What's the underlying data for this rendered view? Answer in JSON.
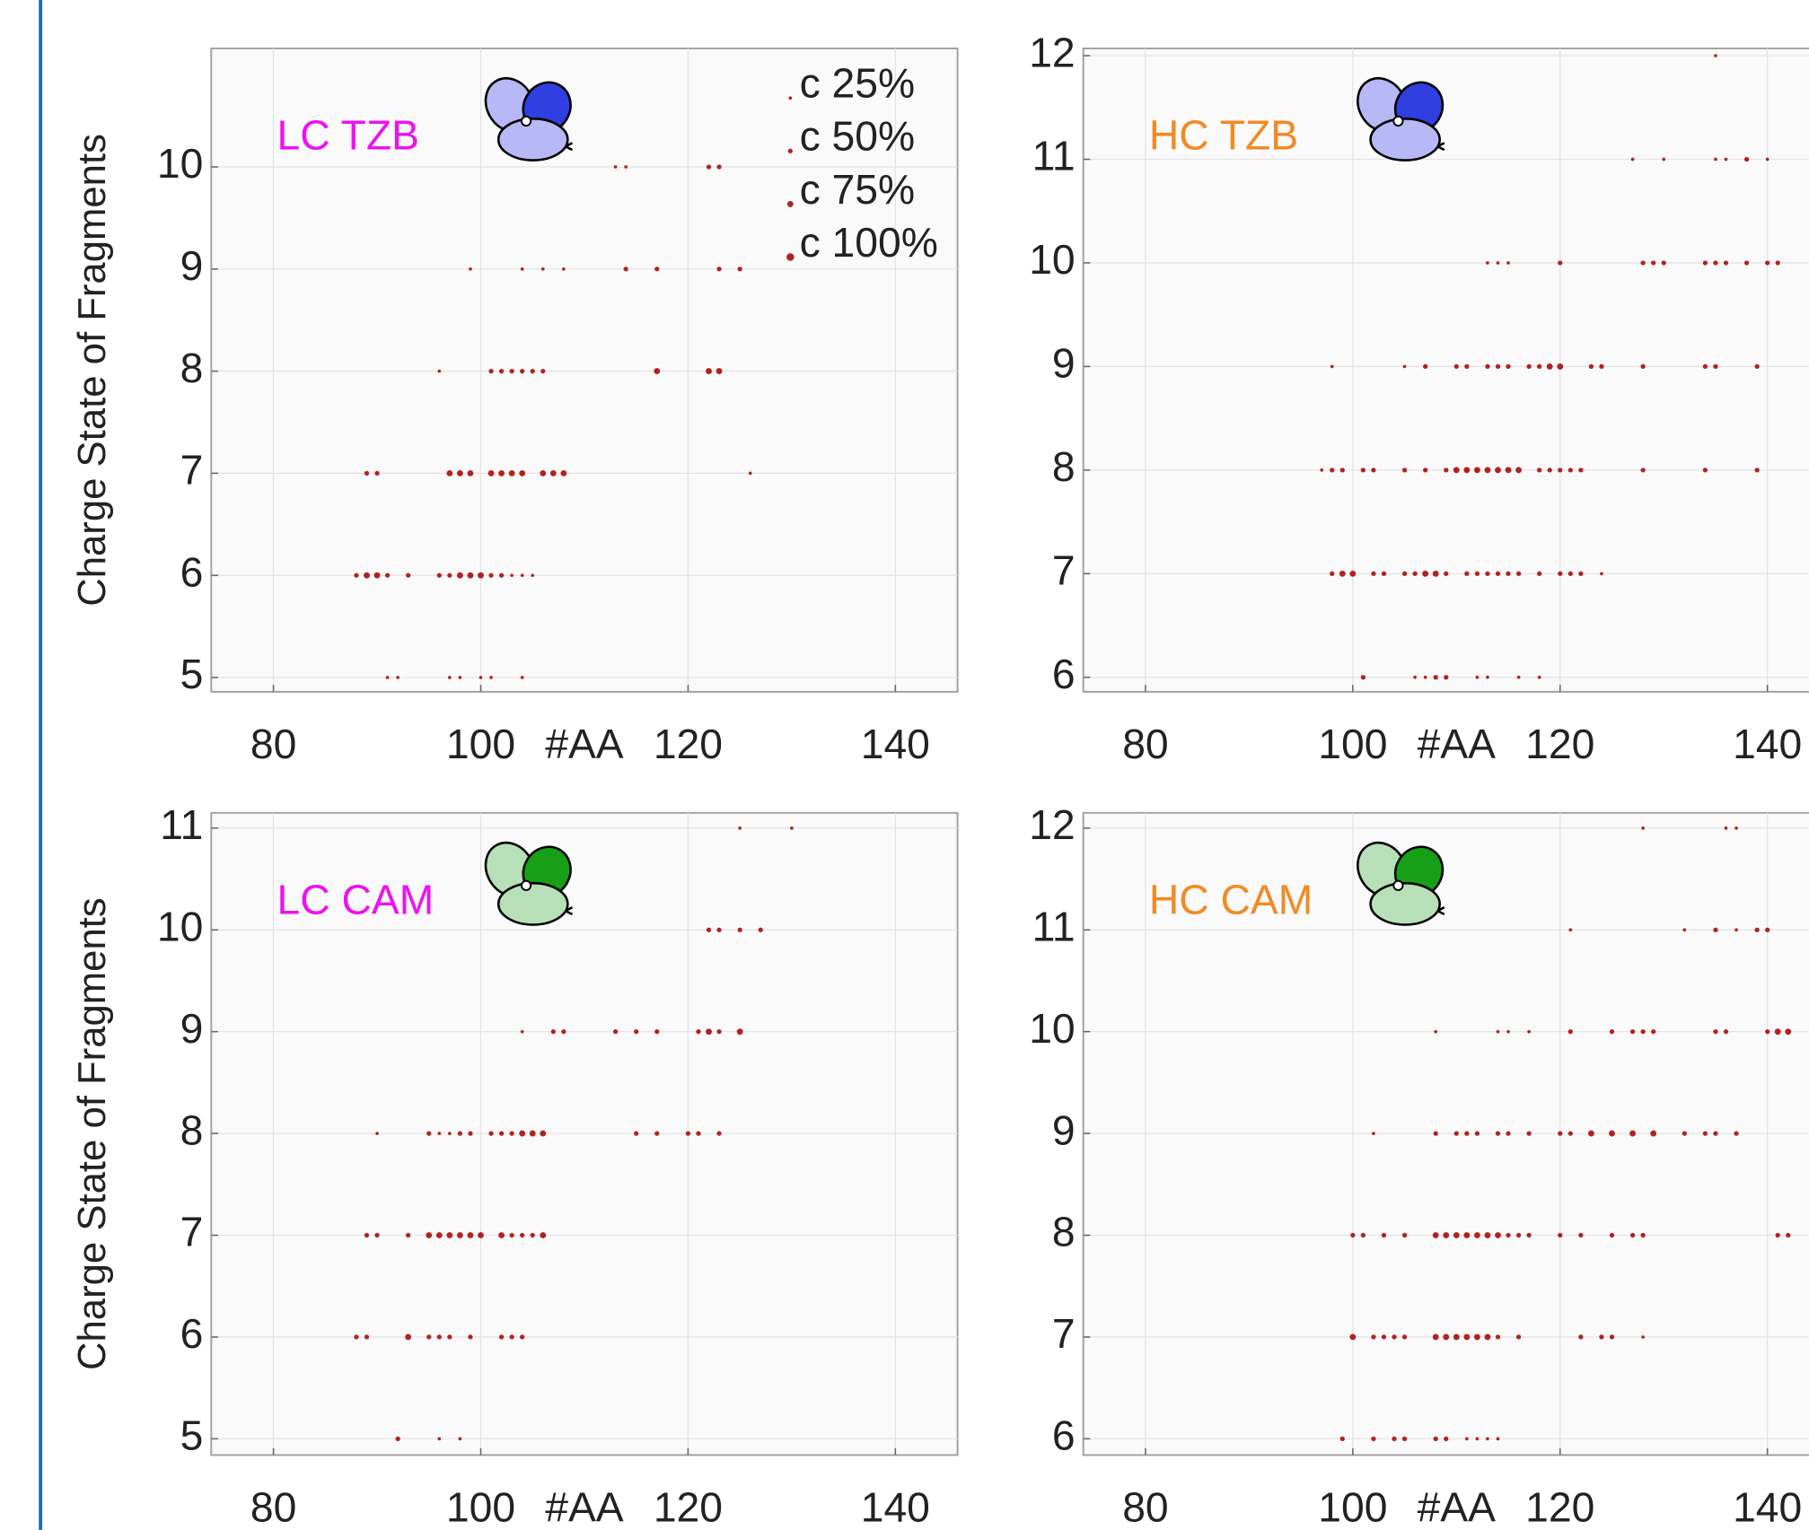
{
  "chart_data": [
    {
      "type": "scatter",
      "title": "LC TZB",
      "title_color": "#ee11ee",
      "icon_colors": [
        "#b8b8f6",
        "#2f3fe0"
      ],
      "color": "#b22222",
      "x_label": "#AA",
      "y_label": "Charge State of Fragments",
      "xlim": [
        74,
        146
      ],
      "ylim": [
        4.86,
        11.16
      ],
      "xticks": [
        80,
        100,
        120,
        140
      ],
      "yticks": [
        5,
        6,
        7,
        8,
        9,
        10
      ],
      "grid": true,
      "legend": [
        {
          "label": "c 25%",
          "value": 25
        },
        {
          "label": "c 50%",
          "value": 50
        },
        {
          "label": "c 75%",
          "value": 75
        },
        {
          "label": "c 100%",
          "value": 100
        }
      ],
      "rows": [
        {
          "charge": 10,
          "x": [
            113,
            114,
            122,
            123
          ],
          "coverage": [
            25,
            25,
            50,
            50
          ]
        },
        {
          "charge": 9,
          "x": [
            99,
            104,
            106,
            108,
            114,
            117,
            123,
            125
          ],
          "coverage": [
            25,
            25,
            25,
            25,
            50,
            50,
            50,
            50
          ]
        },
        {
          "charge": 8,
          "x": [
            96,
            101,
            102,
            103,
            104,
            105,
            106,
            117,
            122,
            123
          ],
          "coverage": [
            25,
            50,
            50,
            50,
            50,
            50,
            50,
            75,
            75,
            75
          ]
        },
        {
          "charge": 7,
          "x": [
            89,
            90,
            97,
            98,
            99,
            101,
            102,
            103,
            104,
            106,
            107,
            108,
            126
          ],
          "coverage": [
            50,
            50,
            75,
            75,
            75,
            75,
            75,
            75,
            75,
            75,
            75,
            75,
            25
          ]
        },
        {
          "charge": 6,
          "x": [
            88,
            89,
            90,
            91,
            93,
            96,
            97,
            98,
            99,
            100,
            101,
            102,
            103,
            104,
            105
          ],
          "coverage": [
            50,
            75,
            75,
            50,
            50,
            50,
            50,
            75,
            75,
            75,
            50,
            50,
            25,
            25,
            25
          ]
        },
        {
          "charge": 5,
          "x": [
            91,
            92,
            97,
            98,
            100,
            101,
            104
          ],
          "coverage": [
            25,
            25,
            25,
            25,
            25,
            25,
            25
          ]
        }
      ]
    },
    {
      "type": "scatter",
      "title": "HC TZB",
      "title_color": "#f28a24",
      "icon_colors": [
        "#b8b8f6",
        "#2f3fe0"
      ],
      "color": "#b22222",
      "x_label": "#AA",
      "xlim": [
        74,
        146
      ],
      "ylim": [
        5.86,
        12.07
      ],
      "xticks": [
        80,
        100,
        120,
        140
      ],
      "yticks": [
        6,
        7,
        8,
        9,
        10,
        11,
        12
      ],
      "grid": true,
      "rows": [
        {
          "charge": 12,
          "x": [
            135
          ],
          "coverage": [
            25
          ]
        },
        {
          "charge": 11,
          "x": [
            127,
            130,
            135,
            136,
            138,
            140
          ],
          "coverage": [
            25,
            25,
            25,
            25,
            50,
            25
          ]
        },
        {
          "charge": 10,
          "x": [
            113,
            114,
            115,
            120,
            128,
            129,
            130,
            134,
            135,
            136,
            138,
            140,
            141
          ],
          "coverage": [
            25,
            25,
            25,
            50,
            50,
            50,
            50,
            50,
            50,
            50,
            50,
            50,
            50
          ]
        },
        {
          "charge": 9,
          "x": [
            98,
            105,
            107,
            110,
            111,
            113,
            114,
            115,
            117,
            118,
            119,
            120,
            123,
            124,
            128,
            134,
            135,
            139
          ],
          "coverage": [
            25,
            25,
            50,
            50,
            50,
            50,
            50,
            50,
            50,
            50,
            75,
            75,
            50,
            50,
            50,
            50,
            50,
            50
          ]
        },
        {
          "charge": 8,
          "x": [
            97,
            98,
            99,
            101,
            102,
            105,
            107,
            109,
            110,
            111,
            112,
            113,
            114,
            115,
            116,
            118,
            119,
            120,
            121,
            122,
            128,
            134,
            139
          ],
          "coverage": [
            25,
            50,
            50,
            50,
            50,
            50,
            50,
            50,
            75,
            75,
            75,
            75,
            75,
            75,
            75,
            50,
            50,
            50,
            50,
            50,
            50,
            50,
            50
          ]
        },
        {
          "charge": 7,
          "x": [
            98,
            99,
            100,
            102,
            103,
            105,
            106,
            107,
            108,
            109,
            111,
            112,
            113,
            114,
            115,
            116,
            118,
            120,
            121,
            122,
            124
          ],
          "coverage": [
            50,
            75,
            75,
            50,
            50,
            50,
            50,
            75,
            75,
            50,
            50,
            50,
            50,
            50,
            50,
            50,
            50,
            50,
            50,
            50,
            25
          ]
        },
        {
          "charge": 6,
          "x": [
            101,
            106,
            107,
            108,
            109,
            112,
            113,
            116,
            118
          ],
          "coverage": [
            50,
            25,
            25,
            50,
            50,
            25,
            25,
            25,
            25
          ]
        }
      ]
    },
    {
      "type": "scatter",
      "title": "LC CAM",
      "title_color": "#ee11ee",
      "icon_colors": [
        "#b8e0b8",
        "#17a017"
      ],
      "color": "#b22222",
      "x_label": "#AA",
      "y_label": "Charge State of Fragments",
      "xlim": [
        74,
        146
      ],
      "ylim": [
        4.84,
        11.15
      ],
      "xticks": [
        80,
        100,
        120,
        140
      ],
      "yticks": [
        5,
        6,
        7,
        8,
        9,
        10,
        11
      ],
      "grid": true,
      "rows": [
        {
          "charge": 11,
          "x": [
            125,
            130
          ],
          "coverage": [
            25,
            25
          ]
        },
        {
          "charge": 10,
          "x": [
            122,
            123,
            125,
            127
          ],
          "coverage": [
            50,
            50,
            50,
            50
          ]
        },
        {
          "charge": 9,
          "x": [
            104,
            107,
            108,
            113,
            115,
            117,
            121,
            122,
            123,
            125
          ],
          "coverage": [
            25,
            50,
            50,
            50,
            50,
            50,
            50,
            75,
            50,
            75
          ]
        },
        {
          "charge": 8,
          "x": [
            90,
            95,
            96,
            97,
            98,
            99,
            101,
            102,
            103,
            104,
            105,
            106,
            115,
            117,
            120,
            121,
            123
          ],
          "coverage": [
            25,
            50,
            25,
            25,
            50,
            50,
            50,
            50,
            50,
            75,
            75,
            75,
            50,
            50,
            50,
            50,
            50
          ]
        },
        {
          "charge": 7,
          "x": [
            89,
            90,
            93,
            95,
            96,
            97,
            98,
            99,
            100,
            102,
            103,
            104,
            105,
            106
          ],
          "coverage": [
            50,
            50,
            50,
            75,
            75,
            75,
            75,
            75,
            75,
            75,
            50,
            50,
            50,
            75
          ]
        },
        {
          "charge": 6,
          "x": [
            88,
            89,
            93,
            95,
            96,
            97,
            99,
            102,
            103,
            104
          ],
          "coverage": [
            50,
            50,
            75,
            50,
            50,
            50,
            50,
            50,
            50,
            50
          ]
        },
        {
          "charge": 5,
          "x": [
            92,
            96,
            98
          ],
          "coverage": [
            50,
            25,
            25
          ]
        }
      ]
    },
    {
      "type": "scatter",
      "title": "HC CAM",
      "title_color": "#f28a24",
      "icon_colors": [
        "#b8e0b8",
        "#17a017"
      ],
      "color": "#b22222",
      "x_label": "#AA",
      "xlim": [
        74,
        146
      ],
      "ylim": [
        5.84,
        12.15
      ],
      "xticks": [
        80,
        100,
        120,
        140
      ],
      "yticks": [
        6,
        7,
        8,
        9,
        10,
        11,
        12
      ],
      "grid": true,
      "rows": [
        {
          "charge": 12,
          "x": [
            128,
            136,
            137
          ],
          "coverage": [
            25,
            25,
            25
          ]
        },
        {
          "charge": 11,
          "x": [
            121,
            132,
            135,
            137,
            139,
            140
          ],
          "coverage": [
            25,
            25,
            50,
            25,
            50,
            50
          ]
        },
        {
          "charge": 10,
          "x": [
            108,
            114,
            115,
            117,
            121,
            125,
            127,
            128,
            129,
            135,
            136,
            140,
            141,
            142
          ],
          "coverage": [
            25,
            25,
            25,
            25,
            50,
            50,
            50,
            50,
            50,
            50,
            50,
            50,
            75,
            75
          ]
        },
        {
          "charge": 9,
          "x": [
            102,
            108,
            110,
            111,
            112,
            114,
            115,
            117,
            120,
            121,
            123,
            125,
            127,
            129,
            132,
            134,
            135,
            137
          ],
          "coverage": [
            25,
            50,
            50,
            50,
            50,
            50,
            50,
            50,
            50,
            50,
            75,
            75,
            75,
            75,
            50,
            50,
            50,
            50
          ]
        },
        {
          "charge": 8,
          "x": [
            100,
            101,
            103,
            105,
            108,
            109,
            110,
            111,
            112,
            113,
            114,
            115,
            116,
            117,
            120,
            122,
            125,
            127,
            128,
            141,
            142
          ],
          "coverage": [
            50,
            50,
            50,
            50,
            75,
            75,
            75,
            75,
            75,
            75,
            75,
            50,
            50,
            50,
            50,
            50,
            50,
            50,
            50,
            50,
            50
          ]
        },
        {
          "charge": 7,
          "x": [
            100,
            102,
            103,
            104,
            105,
            108,
            109,
            110,
            111,
            112,
            113,
            114,
            116,
            122,
            124,
            125,
            128
          ],
          "coverage": [
            75,
            50,
            50,
            50,
            50,
            75,
            75,
            75,
            75,
            75,
            75,
            50,
            50,
            50,
            50,
            50,
            25
          ]
        },
        {
          "charge": 6,
          "x": [
            99,
            102,
            104,
            105,
            108,
            109,
            111,
            112,
            113,
            114
          ],
          "coverage": [
            50,
            50,
            50,
            50,
            50,
            50,
            25,
            25,
            25,
            25
          ]
        }
      ]
    }
  ]
}
